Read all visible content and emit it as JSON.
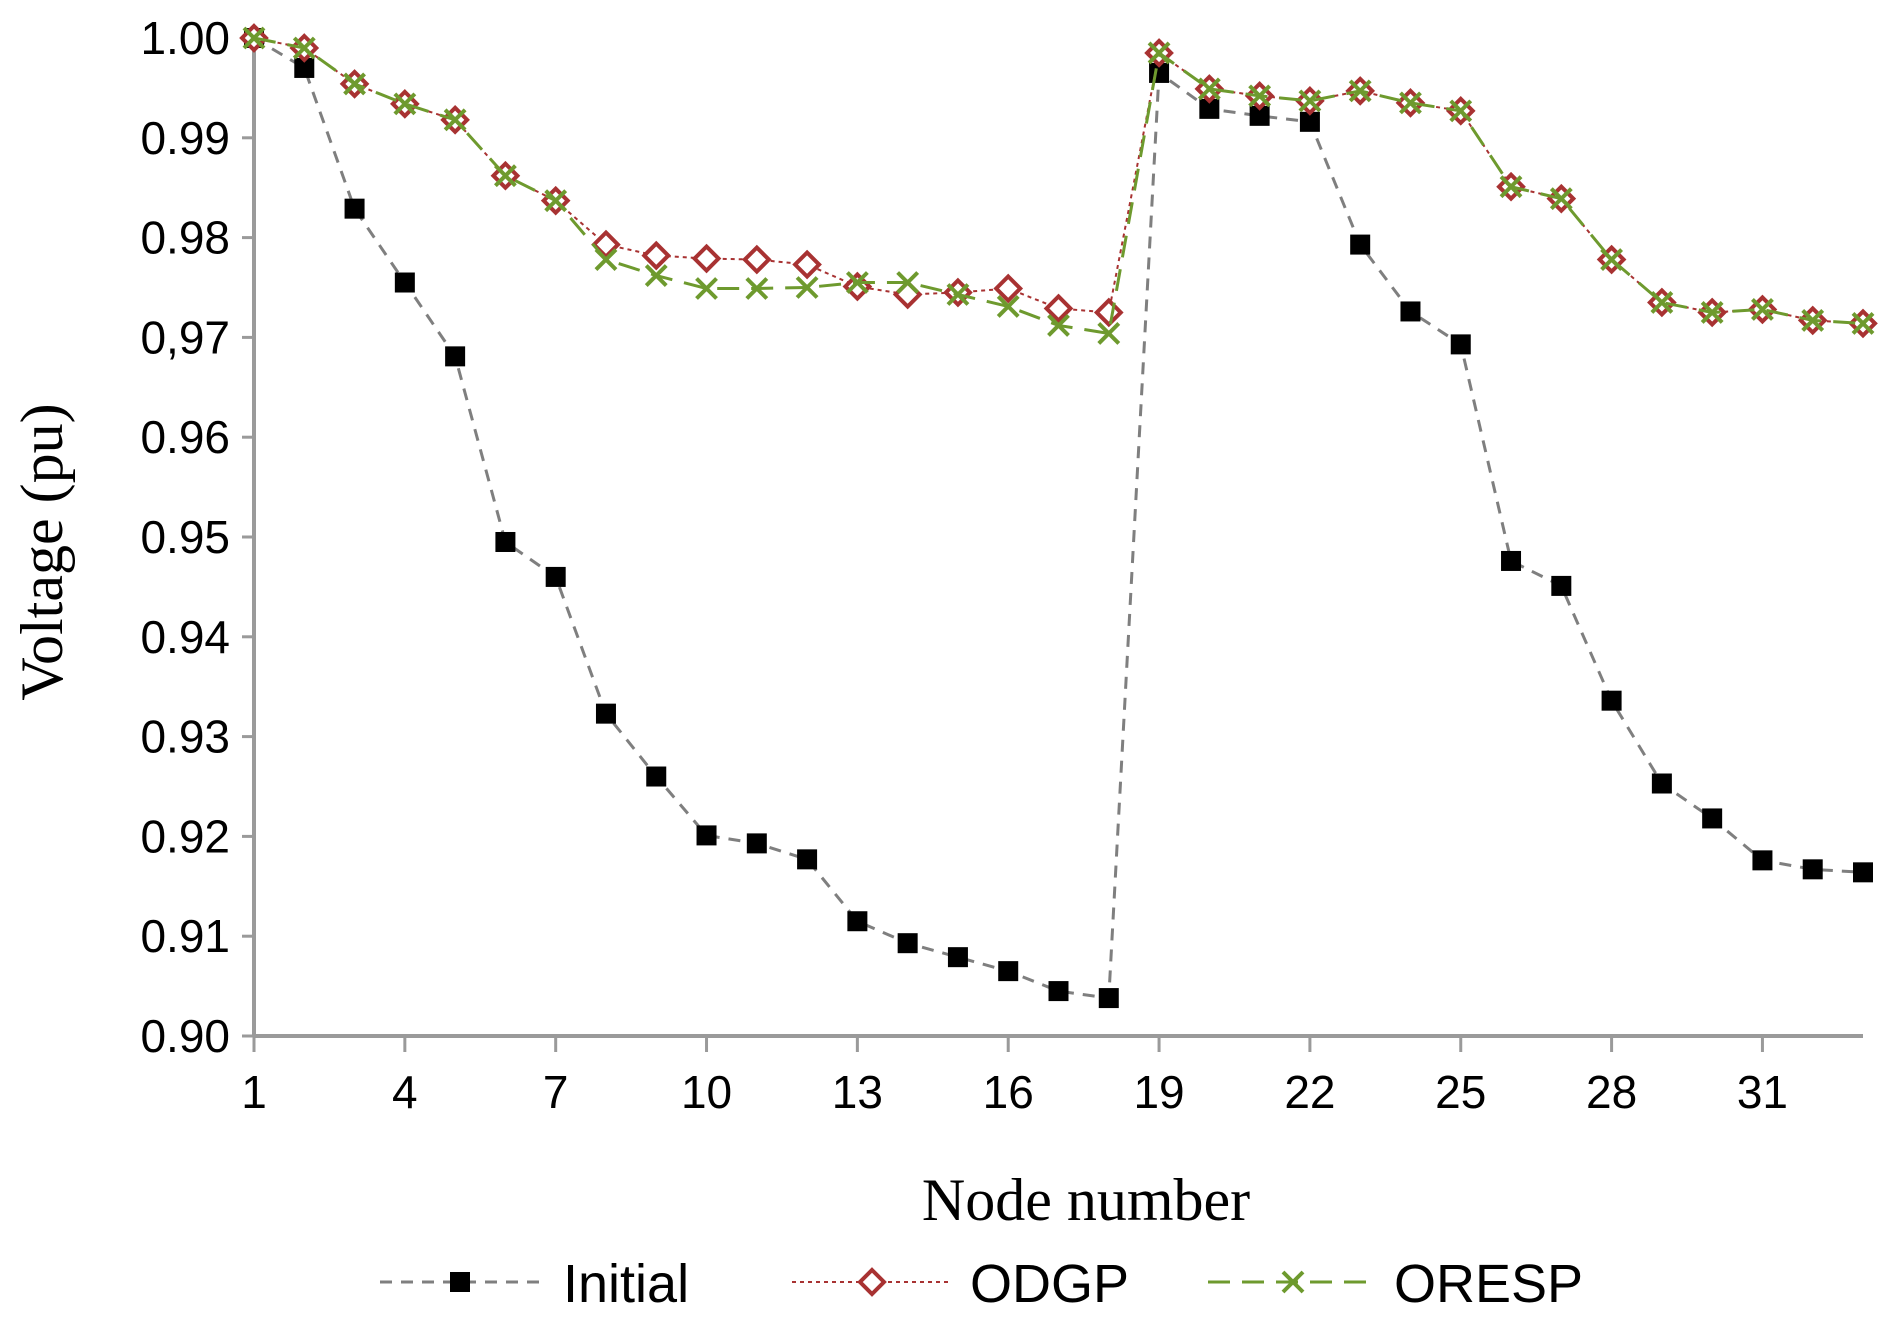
{
  "chart_data": {
    "type": "line",
    "title": "",
    "xlabel": "Node number",
    "ylabel": "Voltage (pu)",
    "xlim": [
      1,
      33
    ],
    "ylim": [
      0.9,
      1.0
    ],
    "x": [
      1,
      2,
      3,
      4,
      5,
      6,
      7,
      8,
      9,
      10,
      11,
      12,
      13,
      14,
      15,
      16,
      17,
      18,
      19,
      20,
      21,
      22,
      23,
      24,
      25,
      26,
      27,
      28,
      29,
      30,
      31,
      32,
      33
    ],
    "x_ticks": [
      1,
      4,
      7,
      10,
      13,
      16,
      19,
      22,
      25,
      28,
      31
    ],
    "x_tick_labels": [
      "1",
      "4",
      "7",
      "10",
      "13",
      "16",
      "19",
      "22",
      "25",
      "28",
      "31"
    ],
    "y_ticks": [
      0.9,
      0.91,
      0.92,
      0.93,
      0.94,
      0.95,
      0.96,
      0.97,
      0.98,
      0.99,
      1.0
    ],
    "y_tick_labels": [
      "0.90",
      "0.91",
      "0.92",
      "0.93",
      "0.94",
      "0.95",
      "0.96",
      "0,97",
      "0.98",
      "0.99",
      "1.00"
    ],
    "grid": false,
    "legend_position": "bottom",
    "series": [
      {
        "name": "Initial",
        "color": "#7f7f7f",
        "marker_color": "#000000",
        "marker": "square",
        "line_style": "dashed",
        "values": [
          1.0,
          0.997,
          0.9829,
          0.9755,
          0.9681,
          0.9495,
          0.946,
          0.9323,
          0.926,
          0.9201,
          0.9193,
          0.9177,
          0.9115,
          0.9093,
          0.9079,
          0.9065,
          0.9045,
          0.9038,
          0.9965,
          0.9929,
          0.9922,
          0.9916,
          0.9793,
          0.9726,
          0.9693,
          0.9476,
          0.9451,
          0.9336,
          0.9253,
          0.9218,
          0.9176,
          0.9167,
          0.9164
        ]
      },
      {
        "name": "ODGP",
        "color": "#a83232",
        "marker_color": "#a83232",
        "marker": "diamond",
        "line_style": "dotted",
        "values": [
          1.0,
          0.999,
          0.9954,
          0.9934,
          0.9918,
          0.9862,
          0.9837,
          0.9793,
          0.9782,
          0.9779,
          0.9778,
          0.9773,
          0.9751,
          0.9743,
          0.9745,
          0.9749,
          0.9729,
          0.9725,
          0.9985,
          0.9949,
          0.9942,
          0.9937,
          0.9947,
          0.9935,
          0.9927,
          0.9851,
          0.9839,
          0.9778,
          0.9735,
          0.9725,
          0.9728,
          0.9717,
          0.9714
        ]
      },
      {
        "name": "ORESP",
        "color": "#6e9a2e",
        "marker_color": "#6e9a2e",
        "marker": "x",
        "line_style": "longdash",
        "values": [
          1.0,
          0.999,
          0.9954,
          0.9934,
          0.9918,
          0.9862,
          0.9837,
          0.9778,
          0.9762,
          0.9749,
          0.9749,
          0.975,
          0.9755,
          0.9755,
          0.9743,
          0.9731,
          0.9712,
          0.9704,
          0.9985,
          0.9949,
          0.9942,
          0.9937,
          0.9947,
          0.9935,
          0.9927,
          0.9851,
          0.9839,
          0.9778,
          0.9735,
          0.9725,
          0.9728,
          0.9717,
          0.9714
        ]
      }
    ]
  }
}
